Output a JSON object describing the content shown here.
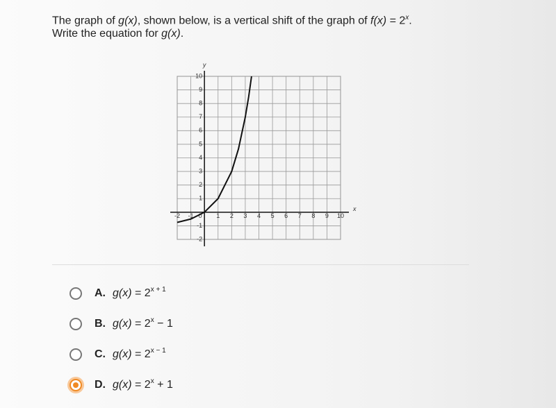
{
  "question": {
    "line1": [
      {
        "text": "The graph of "
      },
      {
        "text": "g(x)",
        "italic": true
      },
      {
        "text": ", shown below, is a vertical shift of the graph of "
      },
      {
        "text": "f(x)",
        "italic": true
      },
      {
        "text": " = 2"
      },
      {
        "text": "x",
        "sup": true
      },
      {
        "text": "."
      }
    ],
    "line2": [
      {
        "text": "Write the equation for "
      },
      {
        "text": "g(x)",
        "italic": true
      },
      {
        "text": "."
      }
    ]
  },
  "graph": {
    "x_label": "x",
    "y_label": "y",
    "xlim": [
      -2,
      10
    ],
    "ylim": [
      -2,
      10
    ],
    "xticks": [
      -2,
      -1,
      0,
      1,
      2,
      3,
      4,
      5,
      6,
      7,
      8,
      9,
      10
    ],
    "yticks": [
      -2,
      -1,
      1,
      2,
      3,
      4,
      5,
      6,
      7,
      8,
      9,
      10
    ],
    "curve": {
      "x": [
        -2,
        -1,
        0,
        1,
        2,
        2.5,
        3,
        3.25,
        3.46
      ],
      "y": [
        -0.75,
        -0.5,
        0,
        1,
        3,
        4.66,
        7,
        8.5,
        10
      ]
    }
  },
  "options": [
    {
      "letter": "A.",
      "func": "g(x)",
      "base": " = 2",
      "exp": "x + 1",
      "tail": null,
      "selected": false
    },
    {
      "letter": "B.",
      "func": "g(x)",
      "base": " = 2",
      "exp": "x",
      "tail": " − 1",
      "selected": false
    },
    {
      "letter": "C.",
      "func": "g(x)",
      "base": " = 2",
      "exp": "x − 1",
      "tail": null,
      "selected": false
    },
    {
      "letter": "D.",
      "func": "g(x)",
      "base": " = 2",
      "exp": "x",
      "tail": " + 1",
      "selected": true
    }
  ]
}
